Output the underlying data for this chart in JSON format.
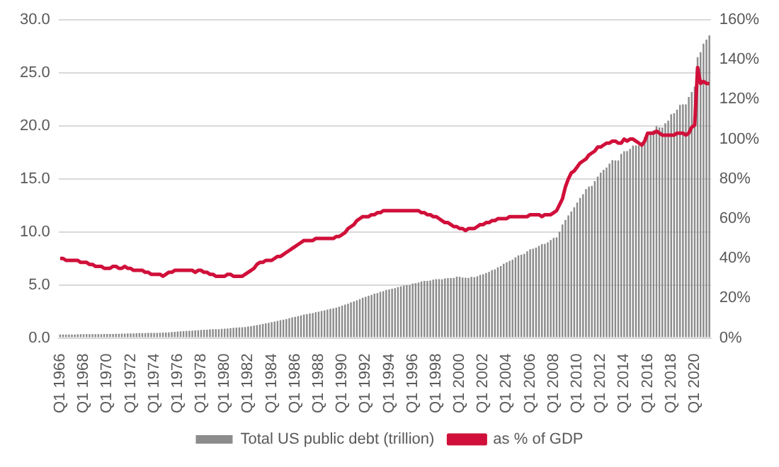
{
  "chart_data": {
    "type": "bar",
    "categories": [
      "Q1 1966",
      null,
      null,
      null,
      null,
      null,
      null,
      null,
      "Q1 1968",
      null,
      null,
      null,
      null,
      null,
      null,
      null,
      "Q1 1970",
      null,
      null,
      null,
      null,
      null,
      null,
      null,
      "Q1 1972",
      null,
      null,
      null,
      null,
      null,
      null,
      null,
      "Q1 1974",
      null,
      null,
      null,
      null,
      null,
      null,
      null,
      "Q1 1976",
      null,
      null,
      null,
      null,
      null,
      null,
      null,
      "Q1 1978",
      null,
      null,
      null,
      null,
      null,
      null,
      null,
      "Q1 1980",
      null,
      null,
      null,
      null,
      null,
      null,
      null,
      "Q1 1982",
      null,
      null,
      null,
      null,
      null,
      null,
      null,
      "Q1 1984",
      null,
      null,
      null,
      null,
      null,
      null,
      null,
      "Q1 1986",
      null,
      null,
      null,
      null,
      null,
      null,
      null,
      "Q1 1988",
      null,
      null,
      null,
      null,
      null,
      null,
      null,
      "Q1 1990",
      null,
      null,
      null,
      null,
      null,
      null,
      null,
      "Q1 1992",
      null,
      null,
      null,
      null,
      null,
      null,
      null,
      "Q1 1994",
      null,
      null,
      null,
      null,
      null,
      null,
      null,
      "Q1 1996",
      null,
      null,
      null,
      null,
      null,
      null,
      null,
      "Q1 1998",
      null,
      null,
      null,
      null,
      null,
      null,
      null,
      "Q1 2000",
      null,
      null,
      null,
      null,
      null,
      null,
      null,
      "Q1 2002",
      null,
      null,
      null,
      null,
      null,
      null,
      null,
      "Q1 2004",
      null,
      null,
      null,
      null,
      null,
      null,
      null,
      "Q1 2006",
      null,
      null,
      null,
      null,
      null,
      null,
      null,
      "Q1 2008",
      null,
      null,
      null,
      null,
      null,
      null,
      null,
      "Q1 2010",
      null,
      null,
      null,
      null,
      null,
      null,
      null,
      "Q1 2012",
      null,
      null,
      null,
      null,
      null,
      null,
      null,
      "Q1 2014",
      null,
      null,
      null,
      null,
      null,
      null,
      null,
      "Q1 2016",
      null,
      null,
      null,
      null,
      null,
      null,
      null,
      "Q1 2018",
      null,
      null,
      null,
      null,
      null,
      null,
      null,
      "Q1 2020",
      null,
      null,
      null,
      null,
      null
    ],
    "series": [
      {
        "name": "Total US public debt (trillion)",
        "color": "#8c8c8c",
        "values": [
          0.32,
          0.32,
          0.33,
          0.33,
          0.33,
          0.33,
          0.34,
          0.35,
          0.35,
          0.35,
          0.36,
          0.36,
          0.36,
          0.36,
          0.36,
          0.37,
          0.37,
          0.37,
          0.38,
          0.39,
          0.39,
          0.4,
          0.41,
          0.42,
          0.43,
          0.43,
          0.44,
          0.45,
          0.46,
          0.46,
          0.47,
          0.47,
          0.48,
          0.48,
          0.49,
          0.5,
          0.51,
          0.53,
          0.55,
          0.57,
          0.6,
          0.62,
          0.64,
          0.66,
          0.68,
          0.69,
          0.71,
          0.73,
          0.75,
          0.77,
          0.78,
          0.8,
          0.82,
          0.82,
          0.83,
          0.85,
          0.87,
          0.89,
          0.92,
          0.95,
          0.97,
          0.99,
          1.0,
          1.03,
          1.07,
          1.1,
          1.15,
          1.2,
          1.25,
          1.32,
          1.38,
          1.43,
          1.49,
          1.54,
          1.6,
          1.67,
          1.72,
          1.78,
          1.85,
          1.95,
          2.0,
          2.06,
          2.13,
          2.21,
          2.25,
          2.31,
          2.35,
          2.43,
          2.48,
          2.55,
          2.6,
          2.68,
          2.74,
          2.8,
          2.86,
          2.94,
          3.05,
          3.14,
          3.23,
          3.36,
          3.44,
          3.54,
          3.66,
          3.8,
          3.88,
          3.98,
          4.06,
          4.18,
          4.23,
          4.35,
          4.41,
          4.53,
          4.58,
          4.65,
          4.69,
          4.8,
          4.86,
          4.95,
          4.97,
          4.99,
          5.12,
          5.16,
          5.22,
          5.32,
          5.38,
          5.38,
          5.41,
          5.5,
          5.54,
          5.55,
          5.53,
          5.61,
          5.65,
          5.64,
          5.66,
          5.78,
          5.77,
          5.69,
          5.67,
          5.66,
          5.77,
          5.73,
          5.81,
          5.94,
          6.01,
          6.13,
          6.23,
          6.4,
          6.46,
          6.67,
          6.78,
          6.99,
          7.13,
          7.27,
          7.38,
          7.6,
          7.78,
          7.84,
          7.93,
          8.17,
          8.37,
          8.42,
          8.51,
          8.68,
          8.85,
          8.87,
          9.01,
          9.23,
          9.44,
          9.49,
          10.02,
          10.7,
          11.13,
          11.55,
          11.91,
          12.31,
          12.77,
          13.2,
          13.56,
          14.03,
          14.27,
          14.34,
          14.79,
          15.22,
          15.58,
          15.86,
          16.07,
          16.43,
          16.77,
          16.74,
          16.74,
          17.35,
          17.6,
          17.63,
          17.82,
          18.14,
          18.15,
          18.15,
          18.15,
          18.92,
          19.26,
          19.38,
          19.57,
          19.98,
          19.85,
          19.84,
          20.24,
          20.49,
          21.09,
          21.2,
          21.52,
          21.97,
          22.03,
          22.02,
          22.72,
          23.2,
          23.69,
          26.48,
          26.95,
          27.75,
          28.13,
          28.53
        ]
      },
      {
        "name": "as % of GDP",
        "type": "line",
        "axis": "y2",
        "color": "#d0103a",
        "values": [
          40,
          40,
          39,
          39,
          39,
          39,
          39,
          38,
          38,
          38,
          37,
          37,
          36,
          36,
          36,
          35,
          35,
          35,
          36,
          36,
          35,
          35,
          36,
          35,
          35,
          34,
          34,
          34,
          34,
          33,
          33,
          32,
          32,
          32,
          32,
          31,
          32,
          33,
          33,
          34,
          34,
          34,
          34,
          34,
          34,
          34,
          33,
          34,
          34,
          33,
          33,
          32,
          32,
          31,
          31,
          31,
          31,
          32,
          32,
          31,
          31,
          31,
          31,
          32,
          33,
          34,
          35,
          37,
          38,
          38,
          39,
          39,
          39,
          40,
          41,
          41,
          42,
          43,
          44,
          45,
          46,
          47,
          48,
          49,
          49,
          49,
          49,
          50,
          50,
          50,
          50,
          50,
          50,
          50,
          51,
          51,
          52,
          53,
          55,
          56,
          57,
          59,
          60,
          61,
          61,
          61,
          62,
          62,
          63,
          63,
          64,
          64,
          64,
          64,
          64,
          64,
          64,
          64,
          64,
          64,
          64,
          64,
          64,
          63,
          63,
          62,
          62,
          61,
          61,
          60,
          59,
          58,
          58,
          57,
          56,
          56,
          55,
          55,
          54,
          55,
          55,
          55,
          56,
          57,
          57,
          58,
          58,
          59,
          59,
          60,
          60,
          60,
          60,
          61,
          61,
          61,
          61,
          61,
          61,
          61,
          62,
          62,
          62,
          62,
          61,
          62,
          62,
          62,
          63,
          64,
          67,
          70,
          76,
          80,
          83,
          84,
          86,
          88,
          89,
          90,
          92,
          93,
          94,
          96,
          96,
          97,
          98,
          98,
          99,
          99,
          98,
          98,
          100,
          99,
          100,
          100,
          99,
          98,
          97,
          99,
          103,
          103,
          103,
          104,
          103,
          102,
          102,
          102,
          102,
          102,
          103,
          103,
          103,
          102,
          103,
          106,
          107,
          136,
          128,
          129,
          128,
          128
        ]
      }
    ],
    "ylim": [
      0,
      30
    ],
    "yticks": [
      {
        "value": 0,
        "label": "0.0"
      },
      {
        "value": 5,
        "label": "5.0"
      },
      {
        "value": 10,
        "label": "10.0"
      },
      {
        "value": 15,
        "label": "15.0"
      },
      {
        "value": 20,
        "label": "20.0"
      },
      {
        "value": 25,
        "label": "25.0"
      },
      {
        "value": 30,
        "label": "30.0"
      }
    ],
    "y2lim": [
      0,
      160
    ],
    "y2ticks": [
      {
        "value": 0,
        "label": "0%"
      },
      {
        "value": 20,
        "label": "20%"
      },
      {
        "value": 40,
        "label": "40%"
      },
      {
        "value": 60,
        "label": "60%"
      },
      {
        "value": 80,
        "label": "80%"
      },
      {
        "value": 100,
        "label": "100%"
      },
      {
        "value": 120,
        "label": "120%"
      },
      {
        "value": 140,
        "label": "140%"
      },
      {
        "value": 160,
        "label": "160%"
      }
    ],
    "grid": "y",
    "legend": "bottom",
    "marker": "none"
  }
}
